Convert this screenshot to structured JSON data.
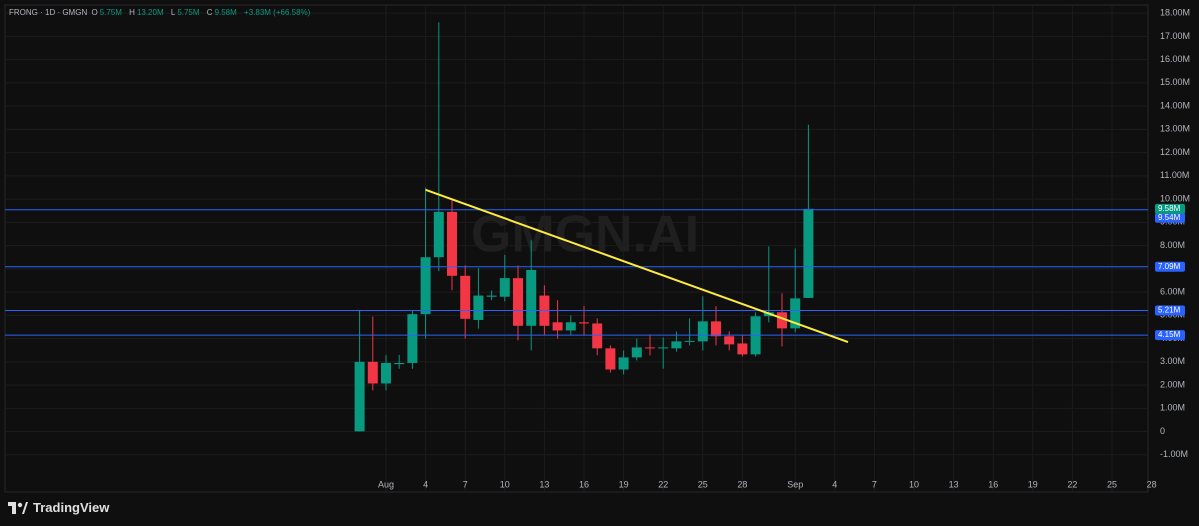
{
  "header": {
    "symbol": "FRONG · 1D · GMGN",
    "open_label": "O",
    "open": "5.75M",
    "high_label": "H",
    "high": "13.20M",
    "low_label": "L",
    "low": "5.75M",
    "close_label": "C",
    "close": "9.58M",
    "change": "+3.83M (+66.58%)"
  },
  "brand": "TradingView",
  "chart_data": {
    "type": "candlestick",
    "watermark": "GMGN.AI",
    "x": [
      "Jul 30",
      "Jul 31",
      "Aug 1",
      "Aug 2",
      "Aug 3",
      "Aug 4",
      "Aug 5",
      "Aug 6",
      "Aug 7",
      "Aug 8",
      "Aug 9",
      "Aug 10",
      "Aug 11",
      "Aug 12",
      "Aug 13",
      "Aug 14",
      "Aug 15",
      "Aug 16",
      "Aug 17",
      "Aug 18",
      "Aug 19",
      "Aug 20",
      "Aug 21",
      "Aug 22",
      "Aug 23",
      "Aug 24",
      "Aug 25",
      "Aug 26",
      "Aug 27",
      "Aug 28",
      "Aug 29",
      "Aug 30",
      "Aug 31",
      "Sep 1",
      "Sep 2"
    ],
    "open": [
      0.01,
      3.0,
      2.07,
      2.9,
      2.95,
      5.05,
      7.5,
      9.45,
      6.7,
      4.8,
      5.8,
      5.8,
      6.6,
      4.55,
      5.85,
      4.7,
      4.35,
      4.7,
      4.65,
      3.58,
      2.67,
      3.19,
      3.62,
      3.58,
      3.58,
      3.88,
      3.88,
      4.74,
      4.1,
      3.79,
      3.32,
      4.96,
      5.13,
      4.44,
      5.75
    ],
    "high": [
      5.2,
      4.95,
      3.3,
      3.3,
      5.2,
      10.5,
      17.6,
      9.95,
      7.15,
      7.03,
      6.07,
      7.6,
      7.15,
      8.23,
      6.29,
      5.65,
      5.0,
      5.39,
      4.87,
      3.71,
      3.49,
      4.0,
      4.18,
      4.05,
      4.31,
      4.87,
      5.82,
      5.39,
      4.31,
      4.13,
      5.13,
      7.97,
      5.95,
      7.88,
      13.2
    ],
    "low": [
      0,
      1.77,
      1.77,
      2.7,
      2.7,
      4.0,
      6.9,
      6.08,
      4.0,
      4.43,
      5.65,
      5.6,
      3.92,
      3.49,
      4.13,
      4.0,
      4.13,
      4.13,
      3.28,
      2.54,
      2.46,
      3.06,
      3.28,
      2.71,
      3.44,
      3.71,
      3.49,
      3.71,
      3.49,
      3.23,
      3.23,
      4.7,
      3.66,
      4.27,
      5.75
    ],
    "close": [
      3.0,
      2.07,
      2.95,
      2.95,
      5.05,
      7.5,
      9.45,
      6.7,
      4.85,
      5.85,
      5.85,
      6.6,
      4.55,
      6.95,
      4.55,
      4.35,
      4.7,
      4.65,
      3.58,
      2.67,
      3.19,
      3.62,
      3.58,
      3.62,
      3.88,
      3.9,
      4.74,
      4.1,
      3.75,
      3.32,
      4.96,
      5.13,
      4.44,
      5.73,
      9.58
    ],
    "up_color": "#089981",
    "down_color": "#f23645",
    "ylim": [
      -2.6,
      18.35
    ],
    "yticks": [
      {
        "value": -1,
        "label": "-1.00M"
      },
      0,
      {
        "value": 1,
        "label": "1.00M"
      },
      {
        "value": 2,
        "label": "2.00M"
      },
      {
        "value": 3,
        "label": "3.00M"
      },
      {
        "value": 4,
        "label": "4.00M"
      },
      {
        "value": 5,
        "label": "5.00M"
      },
      {
        "value": 6,
        "label": "6.00M"
      },
      {
        "value": 7,
        "label": "7.00M"
      },
      {
        "value": 8,
        "label": "8.00M"
      },
      {
        "value": 9,
        "label": "9.00M"
      },
      {
        "value": 10,
        "label": "10.00M"
      },
      {
        "value": 11,
        "label": "11.00M"
      },
      {
        "value": 12,
        "label": "12.00M"
      },
      {
        "value": 13,
        "label": "13.00M"
      },
      {
        "value": 14,
        "label": "14.00M"
      },
      {
        "value": 15,
        "label": "15.00M"
      },
      {
        "value": 16,
        "label": "16.00M"
      },
      {
        "value": 17,
        "label": "17.00M"
      },
      {
        "value": 18,
        "label": "18.00M"
      }
    ],
    "xlim": [
      "Jul 3",
      "Sep 28"
    ],
    "xticks": [
      {
        "value": "Aug 1",
        "label": "Aug"
      },
      {
        "value": "Aug 4",
        "label": "4"
      },
      {
        "value": "Aug 7",
        "label": "7"
      },
      {
        "value": "Aug 10",
        "label": "10"
      },
      {
        "value": "Aug 13",
        "label": "13"
      },
      {
        "value": "Aug 16",
        "label": "16"
      },
      {
        "value": "Aug 19",
        "label": "19"
      },
      {
        "value": "Aug 22",
        "label": "22"
      },
      {
        "value": "Aug 25",
        "label": "25"
      },
      {
        "value": "Aug 28",
        "label": "28"
      },
      {
        "value": "Sep 1",
        "label": "Sep"
      },
      {
        "value": "Sep 4",
        "label": "4"
      },
      {
        "value": "Sep 7",
        "label": "7"
      },
      {
        "value": "Sep 10",
        "label": "10"
      },
      {
        "value": "Sep 13",
        "label": "13"
      },
      {
        "value": "Sep 16",
        "label": "16"
      },
      {
        "value": "Sep 19",
        "label": "19"
      },
      {
        "value": "Sep 22",
        "label": "22"
      },
      {
        "value": "Sep 25",
        "label": "25"
      },
      {
        "value": "Sep 28",
        "label": "28"
      }
    ],
    "grid": true,
    "price_lines": [
      {
        "value": 9.54,
        "label": "9.54M"
      },
      {
        "value": 7.09,
        "label": "7.09M"
      },
      {
        "value": 5.21,
        "label": "5.21M"
      },
      {
        "value": 4.15,
        "label": "4.15M"
      }
    ],
    "price_line_color": "#2962ff",
    "last_price": {
      "value": 9.58,
      "label": "9.58M",
      "color": "#089981"
    },
    "trend_line": {
      "color": "#ffeb3b",
      "points": [
        {
          "x": "Aug 4",
          "y": 10.4
        },
        {
          "x": "Sep 5",
          "y": 3.85
        }
      ]
    }
  }
}
